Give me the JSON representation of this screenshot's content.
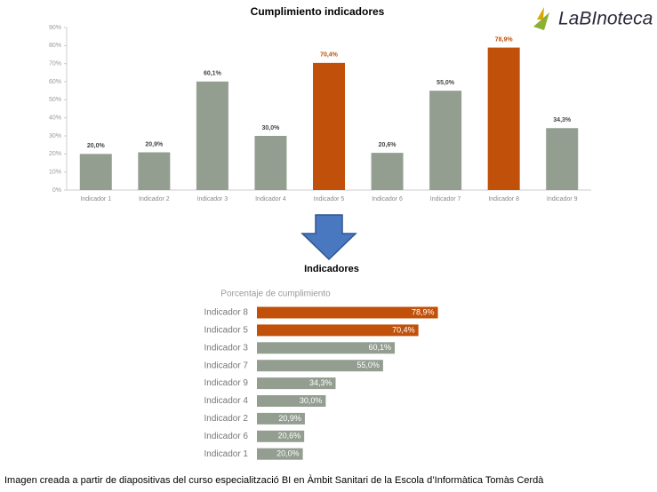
{
  "chart_data": [
    {
      "type": "bar",
      "title": "Cumplimiento indicadores",
      "categories": [
        "Indicador 1",
        "Indicador 2",
        "Indicador 3",
        "Indicador 4",
        "Indicador 5",
        "Indicador 6",
        "Indicador 7",
        "Indicador 8",
        "Indicador 9"
      ],
      "values": [
        20.0,
        20.9,
        60.1,
        30.0,
        70.4,
        20.6,
        55.0,
        78.9,
        34.3
      ],
      "value_labels": [
        "20,0%",
        "20,9%",
        "60,1%",
        "30,0%",
        "70,4%",
        "20,6%",
        "55,0%",
        "78,9%",
        "34,3%"
      ],
      "colors": [
        "#939e91",
        "#939e91",
        "#939e91",
        "#939e91",
        "#c0500a",
        "#939e91",
        "#939e91",
        "#c0500a",
        "#939e91"
      ],
      "ylim": [
        0,
        90
      ],
      "yticks": [
        {
          "value": 0,
          "label": "0%"
        },
        {
          "value": 10,
          "label": "10%"
        },
        {
          "value": 20,
          "label": "20%"
        },
        {
          "value": 30,
          "label": "30%"
        },
        {
          "value": 40,
          "label": "40%"
        },
        {
          "value": 50,
          "label": "50%"
        },
        {
          "value": 60,
          "label": "60%"
        },
        {
          "value": 70,
          "label": "70%"
        },
        {
          "value": 80,
          "label": "80%"
        },
        {
          "value": 90,
          "label": "90%"
        }
      ],
      "grid": false
    },
    {
      "type": "barh",
      "title": "Indicadores",
      "subtitle": "Porcentaje de cumplimiento",
      "categories": [
        "Indicador 8",
        "Indicador 5",
        "Indicador 3",
        "Indicador 7",
        "Indicador 9",
        "Indicador 4",
        "Indicador 2",
        "Indicador 6",
        "Indicador 1"
      ],
      "values": [
        78.9,
        70.4,
        60.1,
        55.0,
        34.3,
        30.0,
        20.9,
        20.6,
        20.0
      ],
      "value_labels": [
        "78,9%",
        "70,4%",
        "60,1%",
        "55,0%",
        "34,3%",
        "30,0%",
        "20,9%",
        "20,6%",
        "20,0%"
      ],
      "colors": [
        "#c0500a",
        "#c0500a",
        "#939e91",
        "#939e91",
        "#939e91",
        "#939e91",
        "#939e91",
        "#939e91",
        "#939e91"
      ]
    }
  ],
  "logo": "LaBInoteca",
  "caption": "Imagen creada a partir de diapositivas del curso especialització BI en Àmbit Sanitari de la Escola d’Informàtica Tomàs Cerdà"
}
